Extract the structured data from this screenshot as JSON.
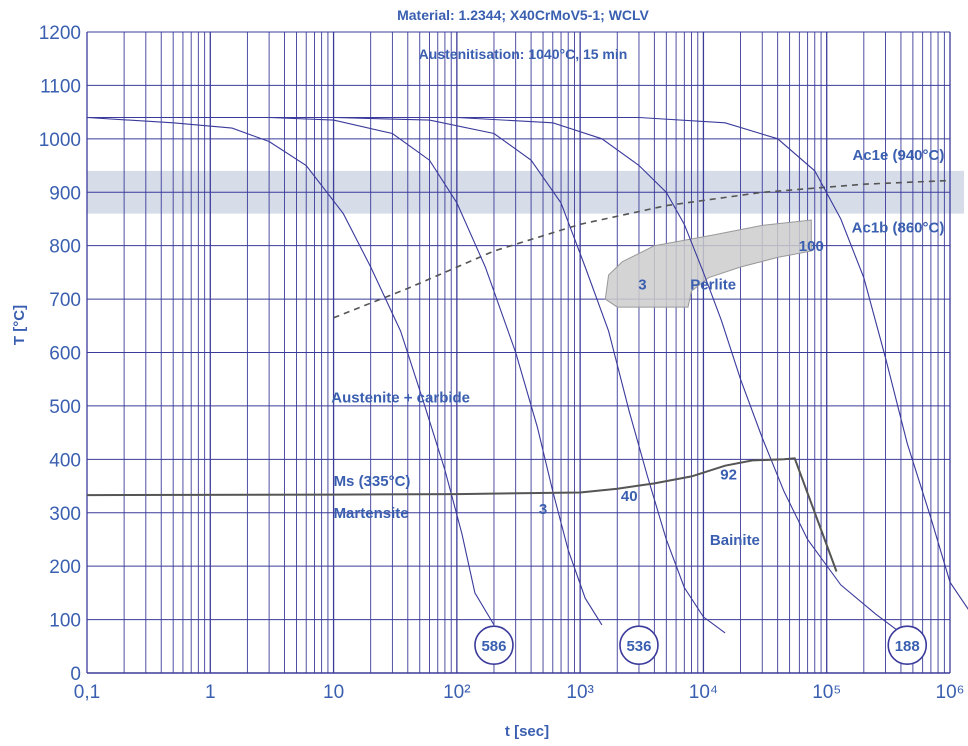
{
  "chart_data": {
    "type": "line",
    "title": "Material: 1.2344; X40CrMoV5-1; WCLV",
    "subtitle": "Austenitisation: 1040°C, 15 min",
    "xlabel": "t [sec]",
    "ylabel": "T [°C]",
    "xscale": "log",
    "xlim": [
      0.1,
      1000000
    ],
    "ylim": [
      0,
      1200
    ],
    "grid": true,
    "colors": {
      "axis_text": "#3a5fb0",
      "grid": "#3b3b9a",
      "curve": "#3a3a9c",
      "band": "#d6dde9",
      "perlite": "#cccccc",
      "boundary": "#555555"
    },
    "x_tick_labels": [
      "0,1",
      "1",
      "10",
      "10²",
      "10³",
      "10⁴",
      "10⁵",
      "10⁶"
    ],
    "y_tick_labels": [
      "0",
      "100",
      "200",
      "300",
      "400",
      "500",
      "600",
      "700",
      "800",
      "900",
      "1000",
      "1100",
      "1200"
    ],
    "y_ticks": [
      0,
      100,
      200,
      300,
      400,
      500,
      600,
      700,
      800,
      900,
      1000,
      1100,
      1200
    ],
    "ac1b_band": [
      860,
      940
    ],
    "labels": {
      "ac1e": "Ac1e (940°C)",
      "ac1b": "Ac1b (860°C)",
      "perlite": "Perlite",
      "austenite": "Austenite + carbide",
      "ms": "Ms (335°C)",
      "martensite": "Martensite",
      "bainite": "Bainite"
    },
    "cooling_curves": [
      {
        "hardness": "",
        "points": [
          [
            0.1,
            1040
          ],
          [
            0.5,
            1030
          ],
          [
            1.5,
            1020
          ],
          [
            3,
            995
          ],
          [
            6,
            950
          ],
          [
            12,
            860
          ],
          [
            20,
            760
          ],
          [
            35,
            640
          ],
          [
            55,
            500
          ],
          [
            80,
            380
          ],
          [
            110,
            260
          ],
          [
            140,
            150
          ],
          [
            200,
            90
          ]
        ]
      },
      {
        "hardness": "586",
        "points": [
          [
            0.1,
            1040
          ],
          [
            3,
            1040
          ],
          [
            10,
            1035
          ],
          [
            30,
            1010
          ],
          [
            60,
            960
          ],
          [
            100,
            880
          ],
          [
            170,
            760
          ],
          [
            300,
            600
          ],
          [
            450,
            460
          ],
          [
            600,
            340
          ],
          [
            800,
            230
          ],
          [
            1100,
            140
          ],
          [
            1500,
            90
          ]
        ]
      },
      {
        "hardness": "",
        "points": [
          [
            0.1,
            1040
          ],
          [
            10,
            1040
          ],
          [
            60,
            1035
          ],
          [
            200,
            1010
          ],
          [
            400,
            960
          ],
          [
            700,
            880
          ],
          [
            1100,
            760
          ],
          [
            1700,
            640
          ],
          [
            2500,
            490
          ],
          [
            3500,
            370
          ],
          [
            5000,
            250
          ],
          [
            7000,
            160
          ],
          [
            10000,
            105
          ],
          [
            15000,
            75
          ]
        ]
      },
      {
        "hardness": "536",
        "points": [
          [
            0.1,
            1040
          ],
          [
            100,
            1040
          ],
          [
            600,
            1030
          ],
          [
            1500,
            1000
          ],
          [
            3000,
            950
          ],
          [
            5000,
            900
          ],
          [
            7000,
            840
          ],
          [
            10000,
            750
          ],
          [
            14000,
            660
          ],
          [
            20000,
            550
          ],
          [
            30000,
            440
          ],
          [
            45000,
            340
          ],
          [
            70000,
            250
          ],
          [
            130000,
            165
          ],
          [
            250000,
            110
          ],
          [
            400000,
            75
          ]
        ]
      },
      {
        "hardness": "188",
        "points": [
          [
            0.1,
            1040
          ],
          [
            3000,
            1040
          ],
          [
            15000,
            1030
          ],
          [
            40000,
            1000
          ],
          [
            80000,
            940
          ],
          [
            130000,
            850
          ],
          [
            200000,
            740
          ],
          [
            300000,
            590
          ],
          [
            450000,
            430
          ],
          [
            700000,
            290
          ],
          [
            1000000,
            170
          ],
          [
            1600000,
            100
          ]
        ]
      }
    ],
    "ms_line": [
      [
        0.1,
        333
      ],
      [
        10,
        334
      ],
      [
        100,
        335
      ],
      [
        1000,
        338
      ],
      [
        2000,
        345
      ],
      [
        4000,
        355
      ],
      [
        8000,
        368
      ],
      [
        15000,
        388
      ],
      [
        25000,
        398
      ],
      [
        45000,
        400
      ],
      [
        55000,
        402
      ],
      [
        120000,
        190
      ]
    ],
    "ac1_trend": [
      [
        10,
        665
      ],
      [
        40,
        720
      ],
      [
        200,
        790
      ],
      [
        1000,
        840
      ],
      [
        5000,
        875
      ],
      [
        30000,
        900
      ],
      [
        200000,
        915
      ],
      [
        1000000,
        922
      ]
    ],
    "perlite_region": [
      [
        1600,
        700
      ],
      [
        1700,
        745
      ],
      [
        2200,
        770
      ],
      [
        4000,
        800
      ],
      [
        12000,
        820
      ],
      [
        30000,
        838
      ],
      [
        75000,
        848
      ],
      [
        75000,
        790
      ],
      [
        40000,
        778
      ],
      [
        20000,
        760
      ],
      [
        11000,
        740
      ],
      [
        8000,
        715
      ],
      [
        7500,
        685
      ],
      [
        2000,
        685
      ],
      [
        1600,
        700
      ]
    ],
    "phase_fractions": [
      {
        "text": "100",
        "x": 75000,
        "y": 790
      },
      {
        "text": "3",
        "x": 3200,
        "y": 718
      },
      {
        "text": "3",
        "x": 500,
        "y": 298
      },
      {
        "text": "40",
        "x": 2500,
        "y": 322
      },
      {
        "text": "92",
        "x": 16000,
        "y": 362
      }
    ],
    "hardness_labels": [
      {
        "text": "586",
        "x": 200,
        "y": 52
      },
      {
        "text": "536",
        "x": 3000,
        "y": 52
      },
      {
        "text": "188",
        "x": 450000,
        "y": 52
      }
    ],
    "label_positions": {
      "ac1e": {
        "x": 900000,
        "y": 960
      },
      "ac1b": {
        "x": 900000,
        "y": 825
      },
      "perlite": {
        "x": 12000,
        "y": 718
      },
      "austenite": {
        "x": 35,
        "y": 506
      },
      "ms": {
        "x": 10,
        "y": 350
      },
      "martensite": {
        "x": 10,
        "y": 290
      },
      "bainite": {
        "x": 18000,
        "y": 240
      }
    }
  }
}
